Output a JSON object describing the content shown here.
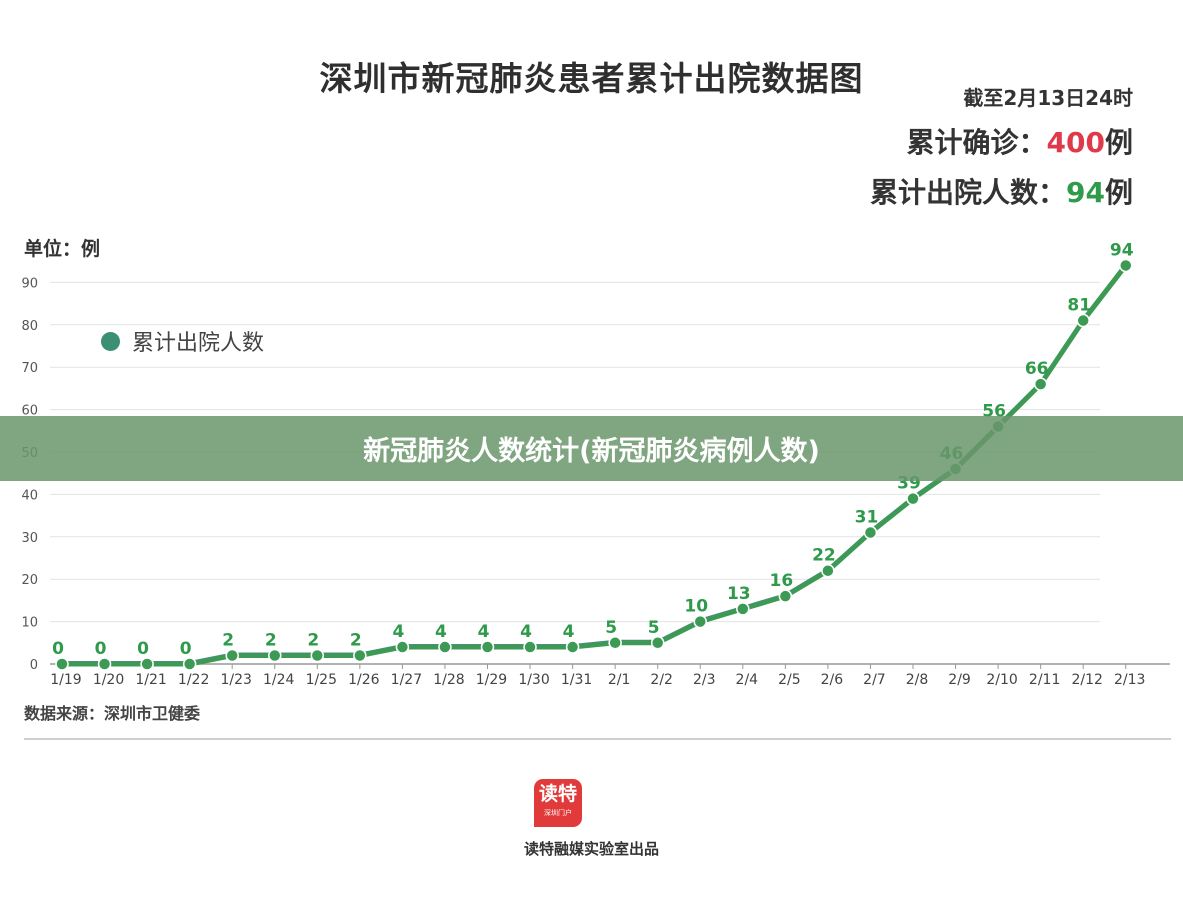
{
  "header": {
    "title": "深圳市新冠肺炎患者累计出院数据图",
    "as_of": "截至2月13日24时",
    "confirmed_label": "累计确诊：",
    "confirmed_value": "400",
    "confirmed_unit": "例",
    "discharged_label": "累计出院人数：",
    "discharged_value": "94",
    "discharged_unit": "例"
  },
  "unit_label": "单位：例",
  "legend": {
    "label": "累计出院人数"
  },
  "source": "数据来源：深圳市卫健委",
  "logo": {
    "main": "读特",
    "sub": "深圳门户"
  },
  "producer": "读特融媒实验室出品",
  "banner": {
    "text": "新冠肺炎人数统计(新冠肺炎病例人数)"
  },
  "colors": {
    "series": "#3d9a55",
    "series_label": "#2e9a4a",
    "grid": "#e3e3e3",
    "confirmed": "#e0394a"
  },
  "chart_data": {
    "type": "line",
    "categories": [
      "1/19",
      "1/20",
      "1/21",
      "1/22",
      "1/23",
      "1/24",
      "1/25",
      "1/26",
      "1/27",
      "1/28",
      "1/29",
      "1/30",
      "1/31",
      "2/1",
      "2/2",
      "2/3",
      "2/4",
      "2/5",
      "2/6",
      "2/7",
      "2/8",
      "2/9",
      "2/10",
      "2/11",
      "2/12",
      "2/13"
    ],
    "series": [
      {
        "name": "累计出院人数",
        "values": [
          0,
          0,
          0,
          0,
          2,
          2,
          2,
          2,
          4,
          4,
          4,
          4,
          4,
          5,
          5,
          10,
          13,
          16,
          22,
          31,
          39,
          46,
          56,
          66,
          81,
          94
        ]
      }
    ],
    "ylim": [
      0,
      90
    ],
    "yticks": [
      0,
      10,
      20,
      30,
      40,
      50,
      60,
      70,
      80,
      90
    ],
    "grid": true,
    "data_labels": true,
    "legend_position": "top-left"
  }
}
